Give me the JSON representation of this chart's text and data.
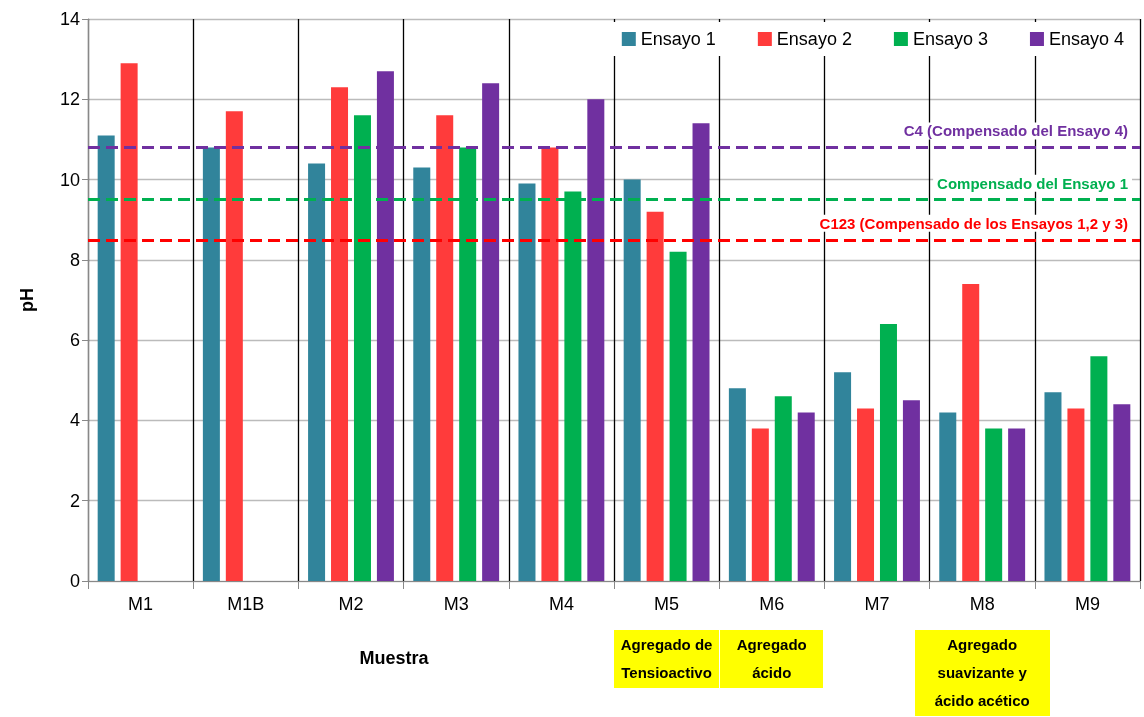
{
  "chart_data": {
    "type": "bar",
    "xlabel": "Muestra",
    "ylabel": "pH",
    "categories": [
      "M1",
      "M1B",
      "M2",
      "M3",
      "M4",
      "M5",
      "M6",
      "M7",
      "M8",
      "M9"
    ],
    "series": [
      {
        "name": "Ensayo 1",
        "color": "#31849b",
        "values": [
          11.1,
          10.8,
          10.4,
          10.3,
          9.9,
          10.0,
          4.8,
          5.2,
          4.2,
          4.7
        ]
      },
      {
        "name": "Ensayo 2",
        "color": "#ff3b3b",
        "values": [
          12.9,
          11.7,
          12.3,
          11.6,
          10.8,
          9.2,
          3.8,
          4.3,
          7.4,
          4.3
        ]
      },
      {
        "name": "Ensayo 3",
        "color": "#00b050",
        "values": [
          null,
          null,
          11.6,
          10.8,
          9.7,
          8.2,
          4.6,
          6.4,
          3.8,
          5.6
        ]
      },
      {
        "name": "Ensayo 4",
        "color": "#7030a0",
        "values": [
          null,
          null,
          12.7,
          12.4,
          12.0,
          11.4,
          4.2,
          4.5,
          3.8,
          4.4
        ]
      }
    ],
    "ylim": [
      0,
      14
    ],
    "yticks": [
      0,
      2,
      4,
      6,
      8,
      10,
      12,
      14
    ],
    "grid": true,
    "legend": "top right",
    "ref_lines": [
      {
        "axis": "y",
        "value": 10.8,
        "label": "C4 (Compensado del Ensayo 4)",
        "color": "#7030a0",
        "line_style": "dashed"
      },
      {
        "axis": "y",
        "value": 9.5,
        "label": "Compensado del Ensayo 1",
        "color": "#00b050",
        "line_style": "dashed"
      },
      {
        "axis": "y",
        "value": 8.5,
        "label": "C123 (Compensado de los Ensayos 1,2 y 3)",
        "color": "#ff0000",
        "line_style": "dashed"
      }
    ],
    "annotations": [
      "Agregado de Tensioactivo",
      "Agregado ácido",
      "Agregado suavizante y ácido acético"
    ]
  }
}
